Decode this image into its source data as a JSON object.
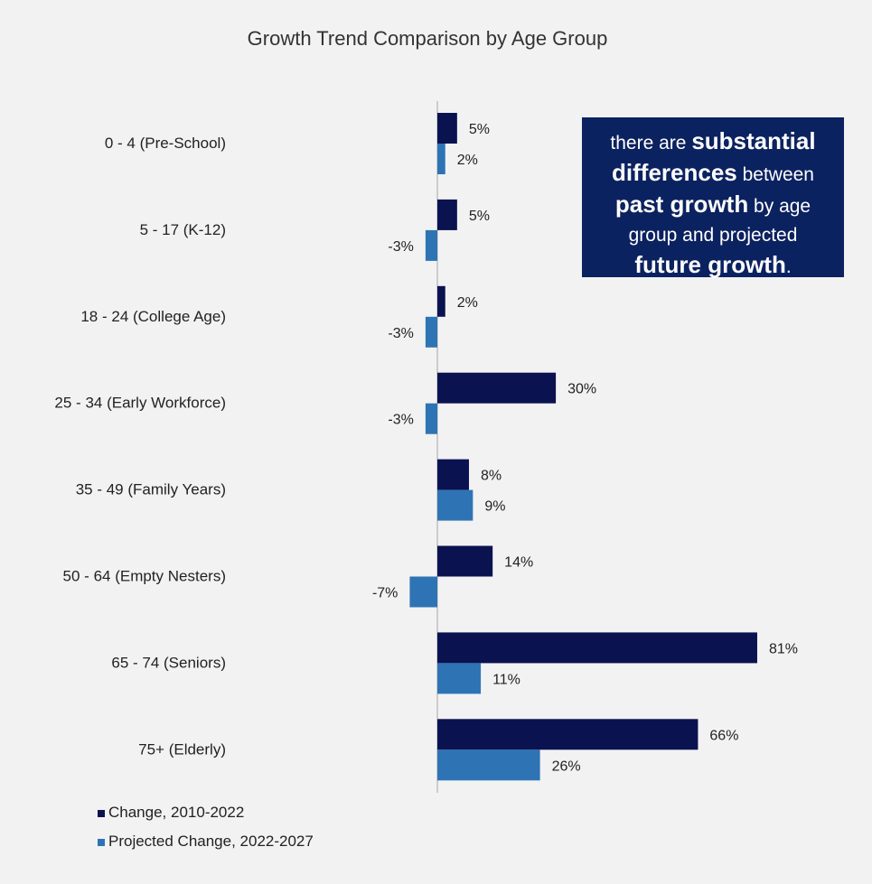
{
  "chart_data": {
    "type": "bar",
    "orientation": "horizontal",
    "title": "Growth Trend Comparison by Age Group",
    "categories": [
      "0 - 4 (Pre-School)",
      "5 - 17 (K-12)",
      "18 - 24 (College Age)",
      "25 - 34 (Early Workforce)",
      "35 - 49 (Family Years)",
      "50 - 64 (Empty Nesters)",
      "65 - 74 (Seniors)",
      "75+ (Elderly)"
    ],
    "series": [
      {
        "name": "Change, 2010-2022",
        "color": "#0a1250",
        "values": [
          5,
          5,
          2,
          30,
          8,
          14,
          81,
          66
        ]
      },
      {
        "name": "Projected Change, 2022-2027",
        "color": "#2e74b5",
        "values": [
          2,
          -3,
          -3,
          -3,
          9,
          -7,
          11,
          26
        ]
      }
    ],
    "value_suffix": "%",
    "xlim": [
      -7,
      81
    ],
    "legend_position": "bottom-left",
    "grid": false
  },
  "callout": {
    "parts": [
      {
        "text": "there are ",
        "bold": false
      },
      {
        "text": "substantial",
        "bold": true
      },
      {
        "text": " ",
        "bold": false
      },
      {
        "text": "differences",
        "bold": true
      },
      {
        "text": " between ",
        "bold": false
      },
      {
        "text": "past growth",
        "bold": true
      },
      {
        "text": " by age group and projected ",
        "bold": false
      },
      {
        "text": "future growth",
        "bold": true
      },
      {
        "text": ".",
        "bold": false
      }
    ]
  }
}
